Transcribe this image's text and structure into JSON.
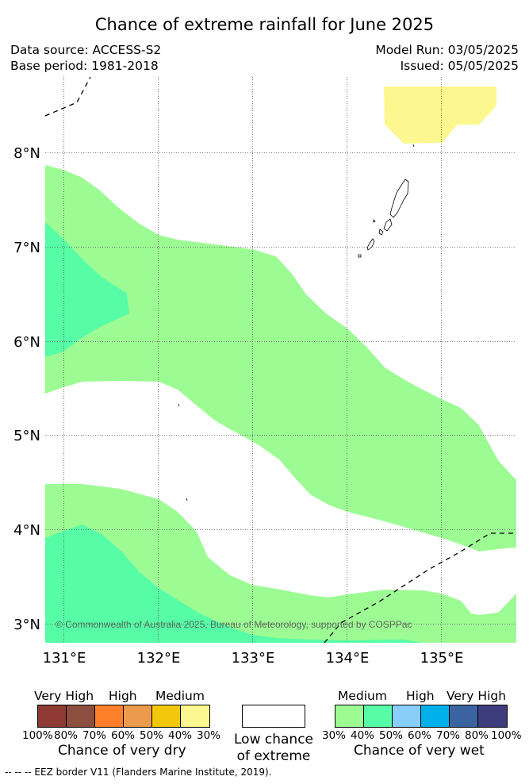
{
  "header": {
    "title": "Chance of extreme rainfall for June 2025",
    "data_source": "Data source: ACCESS-S2",
    "base_period": "Base period: 1981-2018",
    "model_run": "Model Run: 03/05/2025",
    "issued": "Issued: 05/05/2025"
  },
  "map": {
    "longitude_labels": [
      "131°E",
      "132°E",
      "133°E",
      "134°E",
      "135°E"
    ],
    "latitude_labels": [
      "8°N",
      "7°N",
      "6°N",
      "5°N",
      "4°N",
      "3°N"
    ],
    "lon_range": [
      130.8,
      135.8
    ],
    "lat_range": [
      2.8,
      8.8
    ],
    "copyright": "© Commonwealth of Australia 2025, Bureau of Meteorology, supported by COSPPac",
    "colors": {
      "wet_30_40": "#9dfb94",
      "wet_40_50": "#57fca6",
      "dry_30_40": "#fcf78f",
      "gridline": "#555555",
      "coast": "#000000"
    }
  },
  "legend": {
    "dry": {
      "categories": [
        "Very High",
        "High",
        "Medium"
      ],
      "ticks": [
        "100%",
        "80%",
        "70%",
        "60%",
        "50%",
        "40%",
        "30%"
      ],
      "colors": [
        "#8e3a33",
        "#8c4f3f",
        "#fe7f2a",
        "#ec9b4c",
        "#f1c90a",
        "#fcf78f"
      ],
      "caption": "Chance of very dry"
    },
    "neutral": {
      "caption_line1": "Low chance",
      "caption_line2": "of extreme",
      "color": "#ffffff"
    },
    "wet": {
      "categories": [
        "Medium",
        "High",
        "Very High"
      ],
      "ticks": [
        "30%",
        "40%",
        "50%",
        "60%",
        "70%",
        "80%",
        "100%"
      ],
      "colors": [
        "#9dfb94",
        "#57fca6",
        "#87cefa",
        "#00b0eb",
        "#3a63a0",
        "#3d3c7c"
      ],
      "caption": "Chance of very wet"
    }
  },
  "footnote": "--  --  -- EEZ border V11 (Flanders Marine Institute, 2019)."
}
